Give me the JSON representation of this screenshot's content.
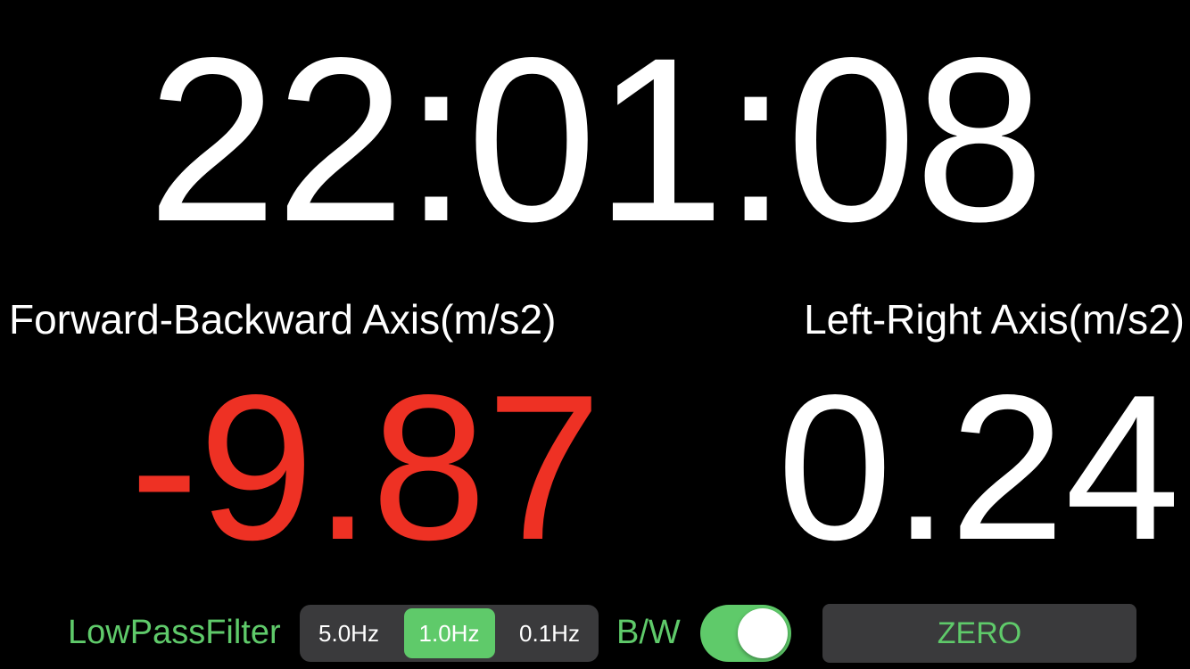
{
  "colors": {
    "background": "#000000",
    "text": "#ffffff",
    "negative_value": "#ee3124",
    "accent_green": "#5fca6a",
    "control_bg": "#3a3a3c"
  },
  "clock": {
    "time": "22:01:08"
  },
  "forward_backward": {
    "label": "Forward-Backward Axis(m/s2)",
    "value": "-9.87"
  },
  "left_right": {
    "label": "Left-Right Axis(m/s2)",
    "value": "0.24"
  },
  "controls": {
    "low_pass_filter_label": "LowPassFilter",
    "filter_options": [
      "5.0Hz",
      "1.0Hz",
      "0.1Hz"
    ],
    "filter_selected": "1.0Hz",
    "bw_label": "B/W",
    "bw_toggle_on": true,
    "zero_button_label": "ZERO"
  }
}
